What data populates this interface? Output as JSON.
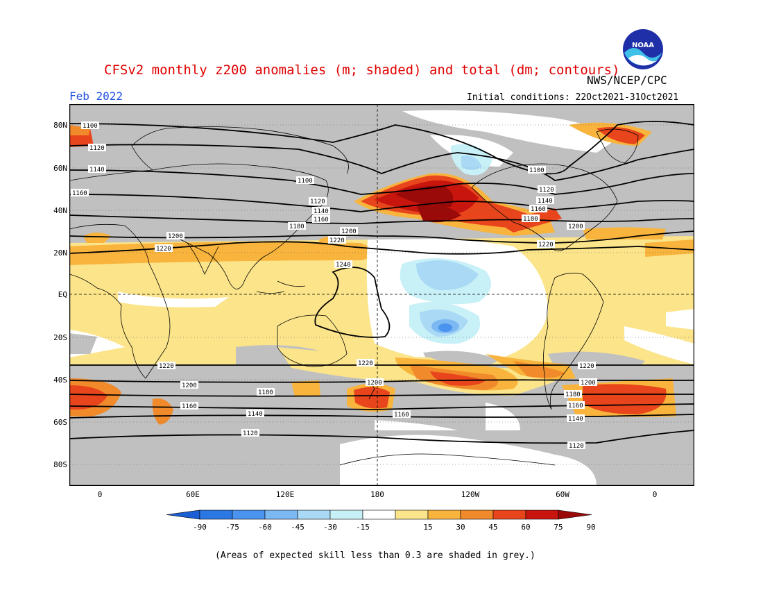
{
  "title": "CFSv2 monthly z200 anomalies (m; shaded) and total (dm; contours)",
  "month_label": "Feb 2022",
  "agency": "NWS/NCEP/CPC",
  "initial_conditions": "Initial conditions: 22Oct2021-31Oct2021",
  "footnote": "(Areas of expected skill less than 0.3 are shaded in grey.)",
  "logo_text": "NOAA",
  "lat_labels": [
    "80N",
    "60N",
    "40N",
    "20N",
    "EQ",
    "20S",
    "40S",
    "60S",
    "80S"
  ],
  "lon_labels": [
    "0",
    "60E",
    "120E",
    "180",
    "120W",
    "60W",
    "0"
  ],
  "colorbar": {
    "labels": [
      "-90",
      "-75",
      "-60",
      "-45",
      "-30",
      "-15",
      "15",
      "30",
      "45",
      "60",
      "75",
      "90"
    ],
    "colors": [
      "#1a5fd4",
      "#2b78e4",
      "#4a93ee",
      "#7cb8f2",
      "#a9d9f5",
      "#c8f0f7",
      "#ffffff",
      "#fbe48a",
      "#f8b43c",
      "#f08a2a",
      "#e8451c",
      "#c8150e",
      "#9a0a08"
    ]
  },
  "contour_labels": [
    "1100",
    "1120",
    "1140",
    "1160",
    "1180",
    "1200",
    "1220",
    "1240"
  ],
  "colors": {
    "title": "#e00000",
    "month": "#2050e0",
    "grey": "#c0c0c0"
  }
}
